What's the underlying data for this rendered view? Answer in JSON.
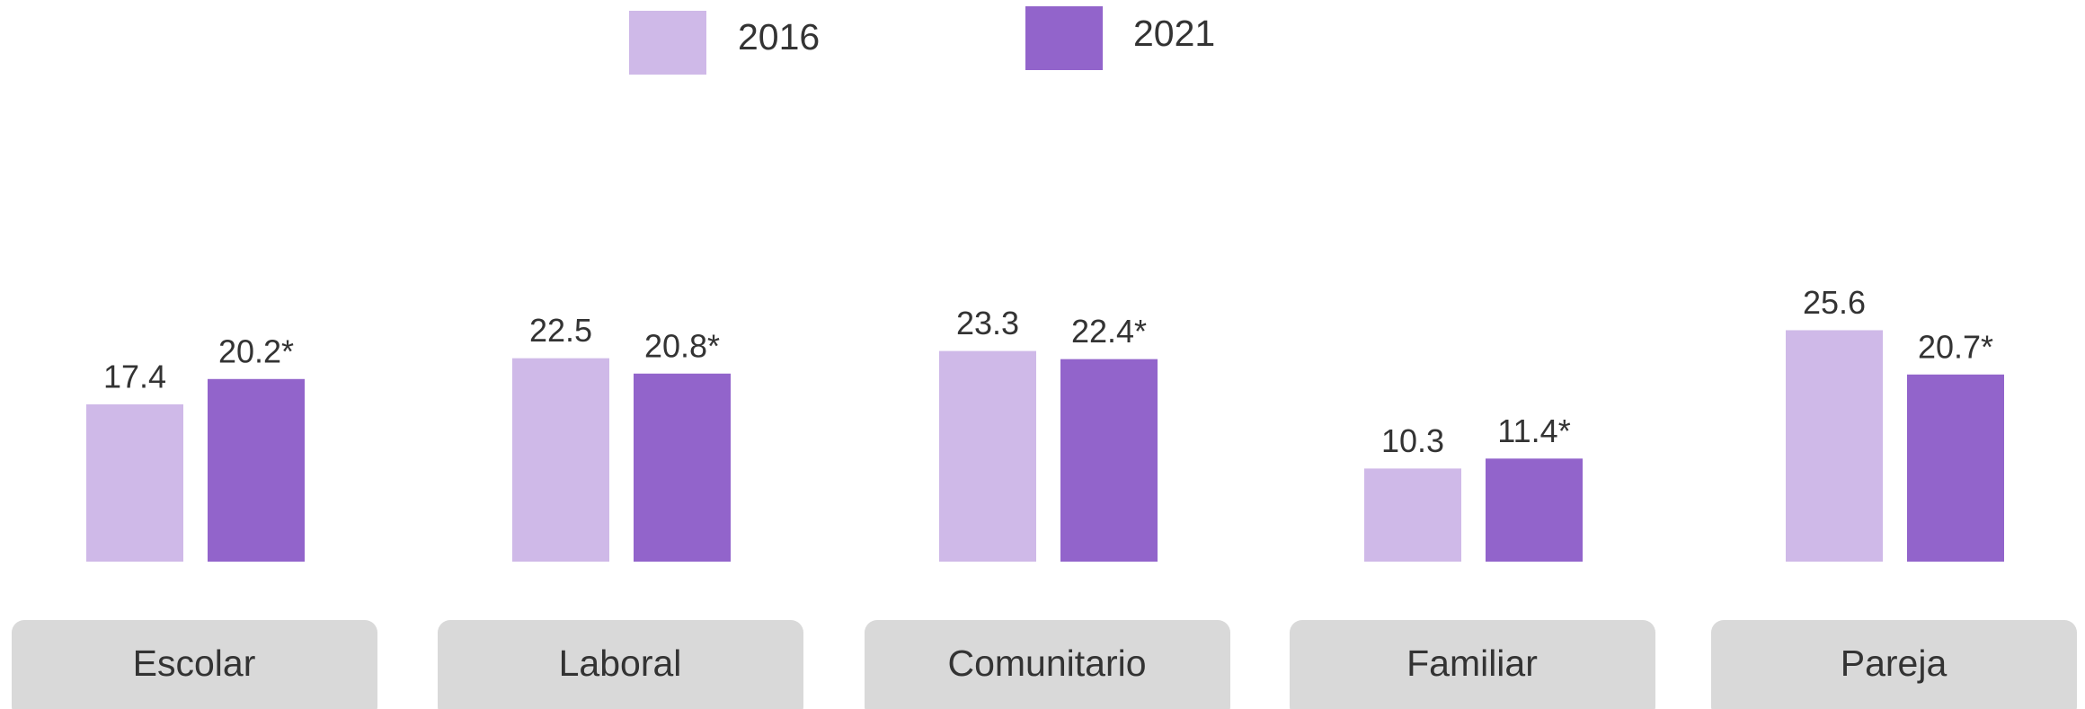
{
  "chart_data": {
    "type": "bar",
    "categories": [
      "Escolar",
      "Laboral",
      "Comunitario",
      "Familiar",
      "Pareja"
    ],
    "series": [
      {
        "name": "2016",
        "color": "#cfb9e8",
        "values": [
          17.4,
          22.5,
          23.3,
          10.3,
          25.6
        ]
      },
      {
        "name": "2021",
        "color": "#9264cb",
        "values": [
          20.2,
          20.8,
          22.4,
          11.4,
          20.7
        ],
        "value_labels": [
          "20.2*",
          "20.8*",
          "22.4*",
          "11.4*",
          "20.7*"
        ]
      }
    ]
  }
}
